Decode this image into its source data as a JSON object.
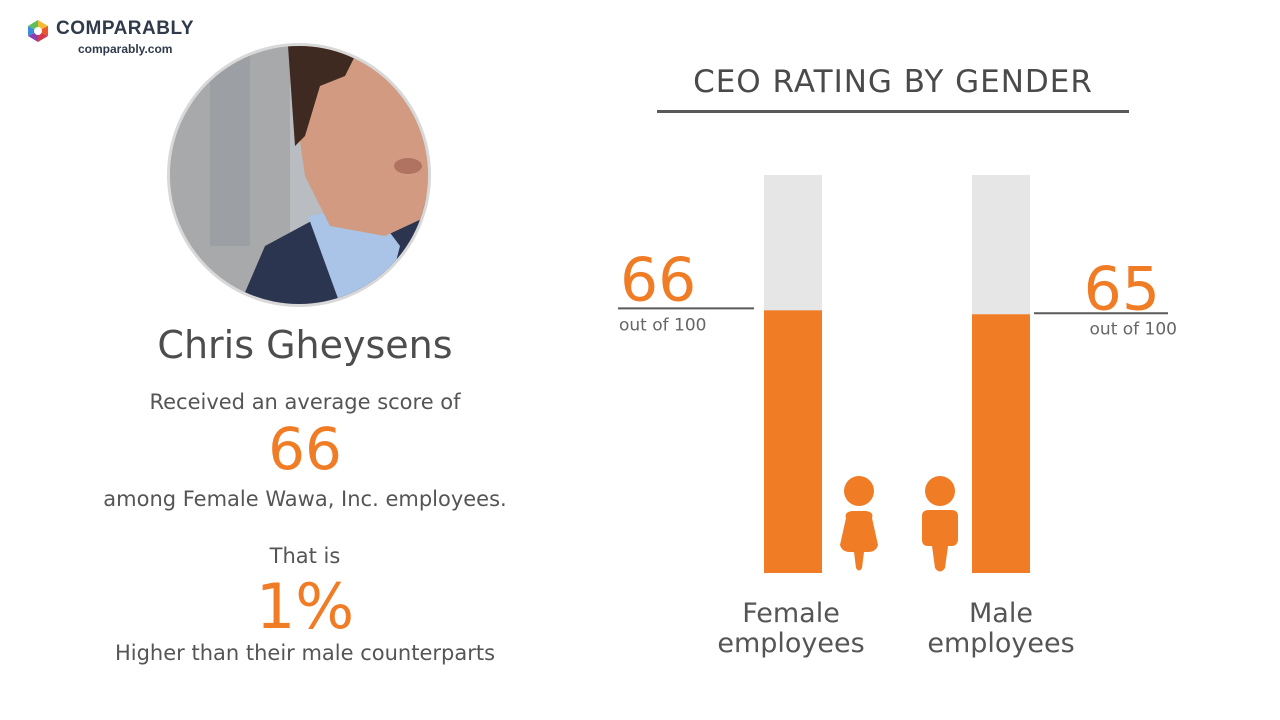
{
  "brand": {
    "name": "COMPARABLY",
    "url": "comparably.com"
  },
  "ceo": {
    "name": "Chris Gheysens"
  },
  "summary": {
    "intro": "Received an average score of",
    "score": "66",
    "group_text": "among Female Wawa, Inc. employees.",
    "that_is": "That is",
    "difference": "1%",
    "comparison": "Higher than their male counterparts"
  },
  "colors": {
    "accent": "#f07c25",
    "track": "#e6e6e6",
    "text": "#4a4a4a"
  },
  "chart_data": {
    "type": "bar",
    "title": "CEO RATING BY GENDER",
    "ylim": [
      0,
      100
    ],
    "categories": [
      "Female employees",
      "Male employees"
    ],
    "category_lines": [
      [
        "Female",
        "employees"
      ],
      [
        "Male",
        "employees"
      ]
    ],
    "values": [
      66,
      65
    ],
    "value_labels": [
      "66",
      "65"
    ],
    "value_suffix": "out of 100",
    "icons": [
      "female-person-icon",
      "male-person-icon"
    ]
  }
}
